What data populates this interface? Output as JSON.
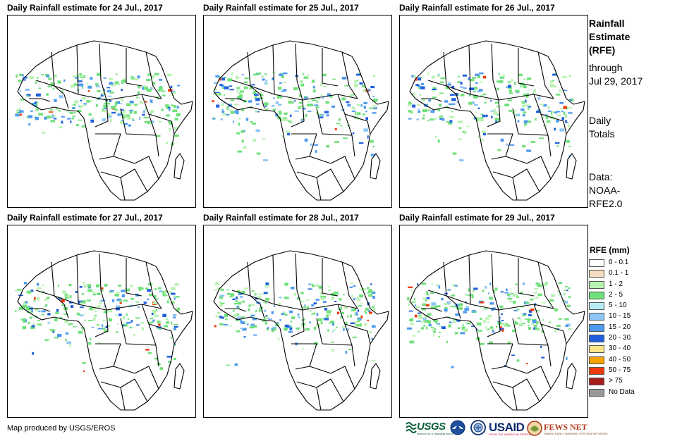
{
  "panels": [
    {
      "title": "Daily Rainfall estimate for 24 Jul., 2017"
    },
    {
      "title": "Daily Rainfall estimate for 25 Jul., 2017"
    },
    {
      "title": "Daily Rainfall estimate for 26 Jul., 2017"
    },
    {
      "title": "Daily Rainfall estimate for 27 Jul., 2017"
    },
    {
      "title": "Daily Rainfall estimate for 28 Jul., 2017"
    },
    {
      "title": "Daily Rainfall estimate for 29 Jul., 2017"
    }
  ],
  "side": {
    "title_line1": "Rainfall",
    "title_line2": "Estimate",
    "title_line3": "(RFE)",
    "through_label": "through",
    "through_date": "Jul 29, 2017",
    "totals_line1": "Daily",
    "totals_line2": "Totals",
    "data_line1": "Data:",
    "data_line2": "NOAA-",
    "data_line3": "RFE2.0"
  },
  "legend": {
    "title": "RFE (mm)",
    "items": [
      {
        "label": "0 - 0.1",
        "color": "#ffffff"
      },
      {
        "label": "0.1 - 1",
        "color": "#f5dcc0"
      },
      {
        "label": "1 - 2",
        "color": "#b8f2b0"
      },
      {
        "label": "2 - 5",
        "color": "#6fe07a"
      },
      {
        "label": "5 - 10",
        "color": "#b7ecf5"
      },
      {
        "label": "10 - 15",
        "color": "#8ec5f5"
      },
      {
        "label": "15 - 20",
        "color": "#4d9aee"
      },
      {
        "label": "20 - 30",
        "color": "#1f5fdc"
      },
      {
        "label": "30 - 40",
        "color": "#fbe68a"
      },
      {
        "label": "40 - 50",
        "color": "#f5a400"
      },
      {
        "label": "50 - 75",
        "color": "#ee3a0a"
      },
      {
        "label": "> 75",
        "color": "#a61c1c"
      },
      {
        "label": "No Data",
        "color": "#999999"
      }
    ]
  },
  "credit": "Map produced by USGS/EROS",
  "logos": {
    "usgs": "USGS",
    "usgs_tagline": "science for a changing world",
    "usaid": "USAID",
    "usaid_tagline": "FROM THE AMERICAN PEOPLE",
    "fews": "FEWS NET",
    "fews_tagline": "FAMINE EARLY WARNING SYSTEMS NETWORK"
  }
}
